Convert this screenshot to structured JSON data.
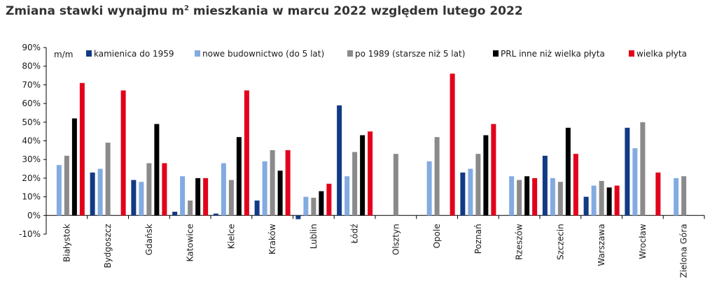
{
  "title_parts": [
    "Zmiana stawki wynajmu m",
    "2",
    " mieszkania w marcu 2022 względem lutego 2022"
  ],
  "chart_data": {
    "type": "bar",
    "title": "Zmiana stawki wynajmu m² mieszkania w marcu 2022 względem lutego 2022",
    "unit_label": "m/m",
    "ylim": [
      -10,
      90
    ],
    "yticks": [
      -10,
      0,
      10,
      20,
      30,
      40,
      50,
      60,
      70,
      80,
      90
    ],
    "ytick_labels": [
      "-10%",
      "0%",
      "10%",
      "20%",
      "30%",
      "40%",
      "50%",
      "60%",
      "70%",
      "80%",
      "90%"
    ],
    "grid": false,
    "legend_position": "top",
    "categories": [
      "Białystok",
      "Bydgoszcz",
      "Gdańsk",
      "Katowice",
      "Kielce",
      "Kraków",
      "Lublin",
      "Łódź",
      "Olsztyn",
      "Opole",
      "Poznań",
      "Rzeszów",
      "Szczecin",
      "Warszawa",
      "Wrocław",
      "Zielona Góra"
    ],
    "series": [
      {
        "name": "kamienica do 1959",
        "color": "#123a84",
        "values": [
          null,
          23,
          19,
          2,
          1,
          8,
          -2,
          59,
          null,
          null,
          23,
          null,
          32,
          10,
          47,
          null
        ]
      },
      {
        "name": "nowe budownictwo (do 5 lat)",
        "color": "#82abe0",
        "values": [
          27,
          25,
          18,
          21,
          28,
          29,
          10,
          21,
          null,
          29,
          25,
          21,
          20,
          16,
          36,
          20
        ]
      },
      {
        "name": "po 1989 (starsze niż 5 lat)",
        "color": "#8a8a8a",
        "values": [
          32,
          39,
          28,
          8,
          19,
          35,
          9.5,
          34,
          33,
          42,
          33,
          19,
          18,
          18.5,
          50,
          21
        ]
      },
      {
        "name": "PRL inne niż wielka płyta",
        "color": "#000000",
        "values": [
          52,
          null,
          49,
          20,
          42,
          24,
          13,
          43,
          null,
          null,
          43,
          21,
          47,
          15,
          null,
          null
        ]
      },
      {
        "name": "wielka płyta",
        "color": "#e3001b",
        "values": [
          71,
          67,
          28,
          20,
          67,
          35,
          17,
          45,
          null,
          76,
          49,
          20,
          33,
          16,
          23,
          null
        ]
      }
    ]
  }
}
